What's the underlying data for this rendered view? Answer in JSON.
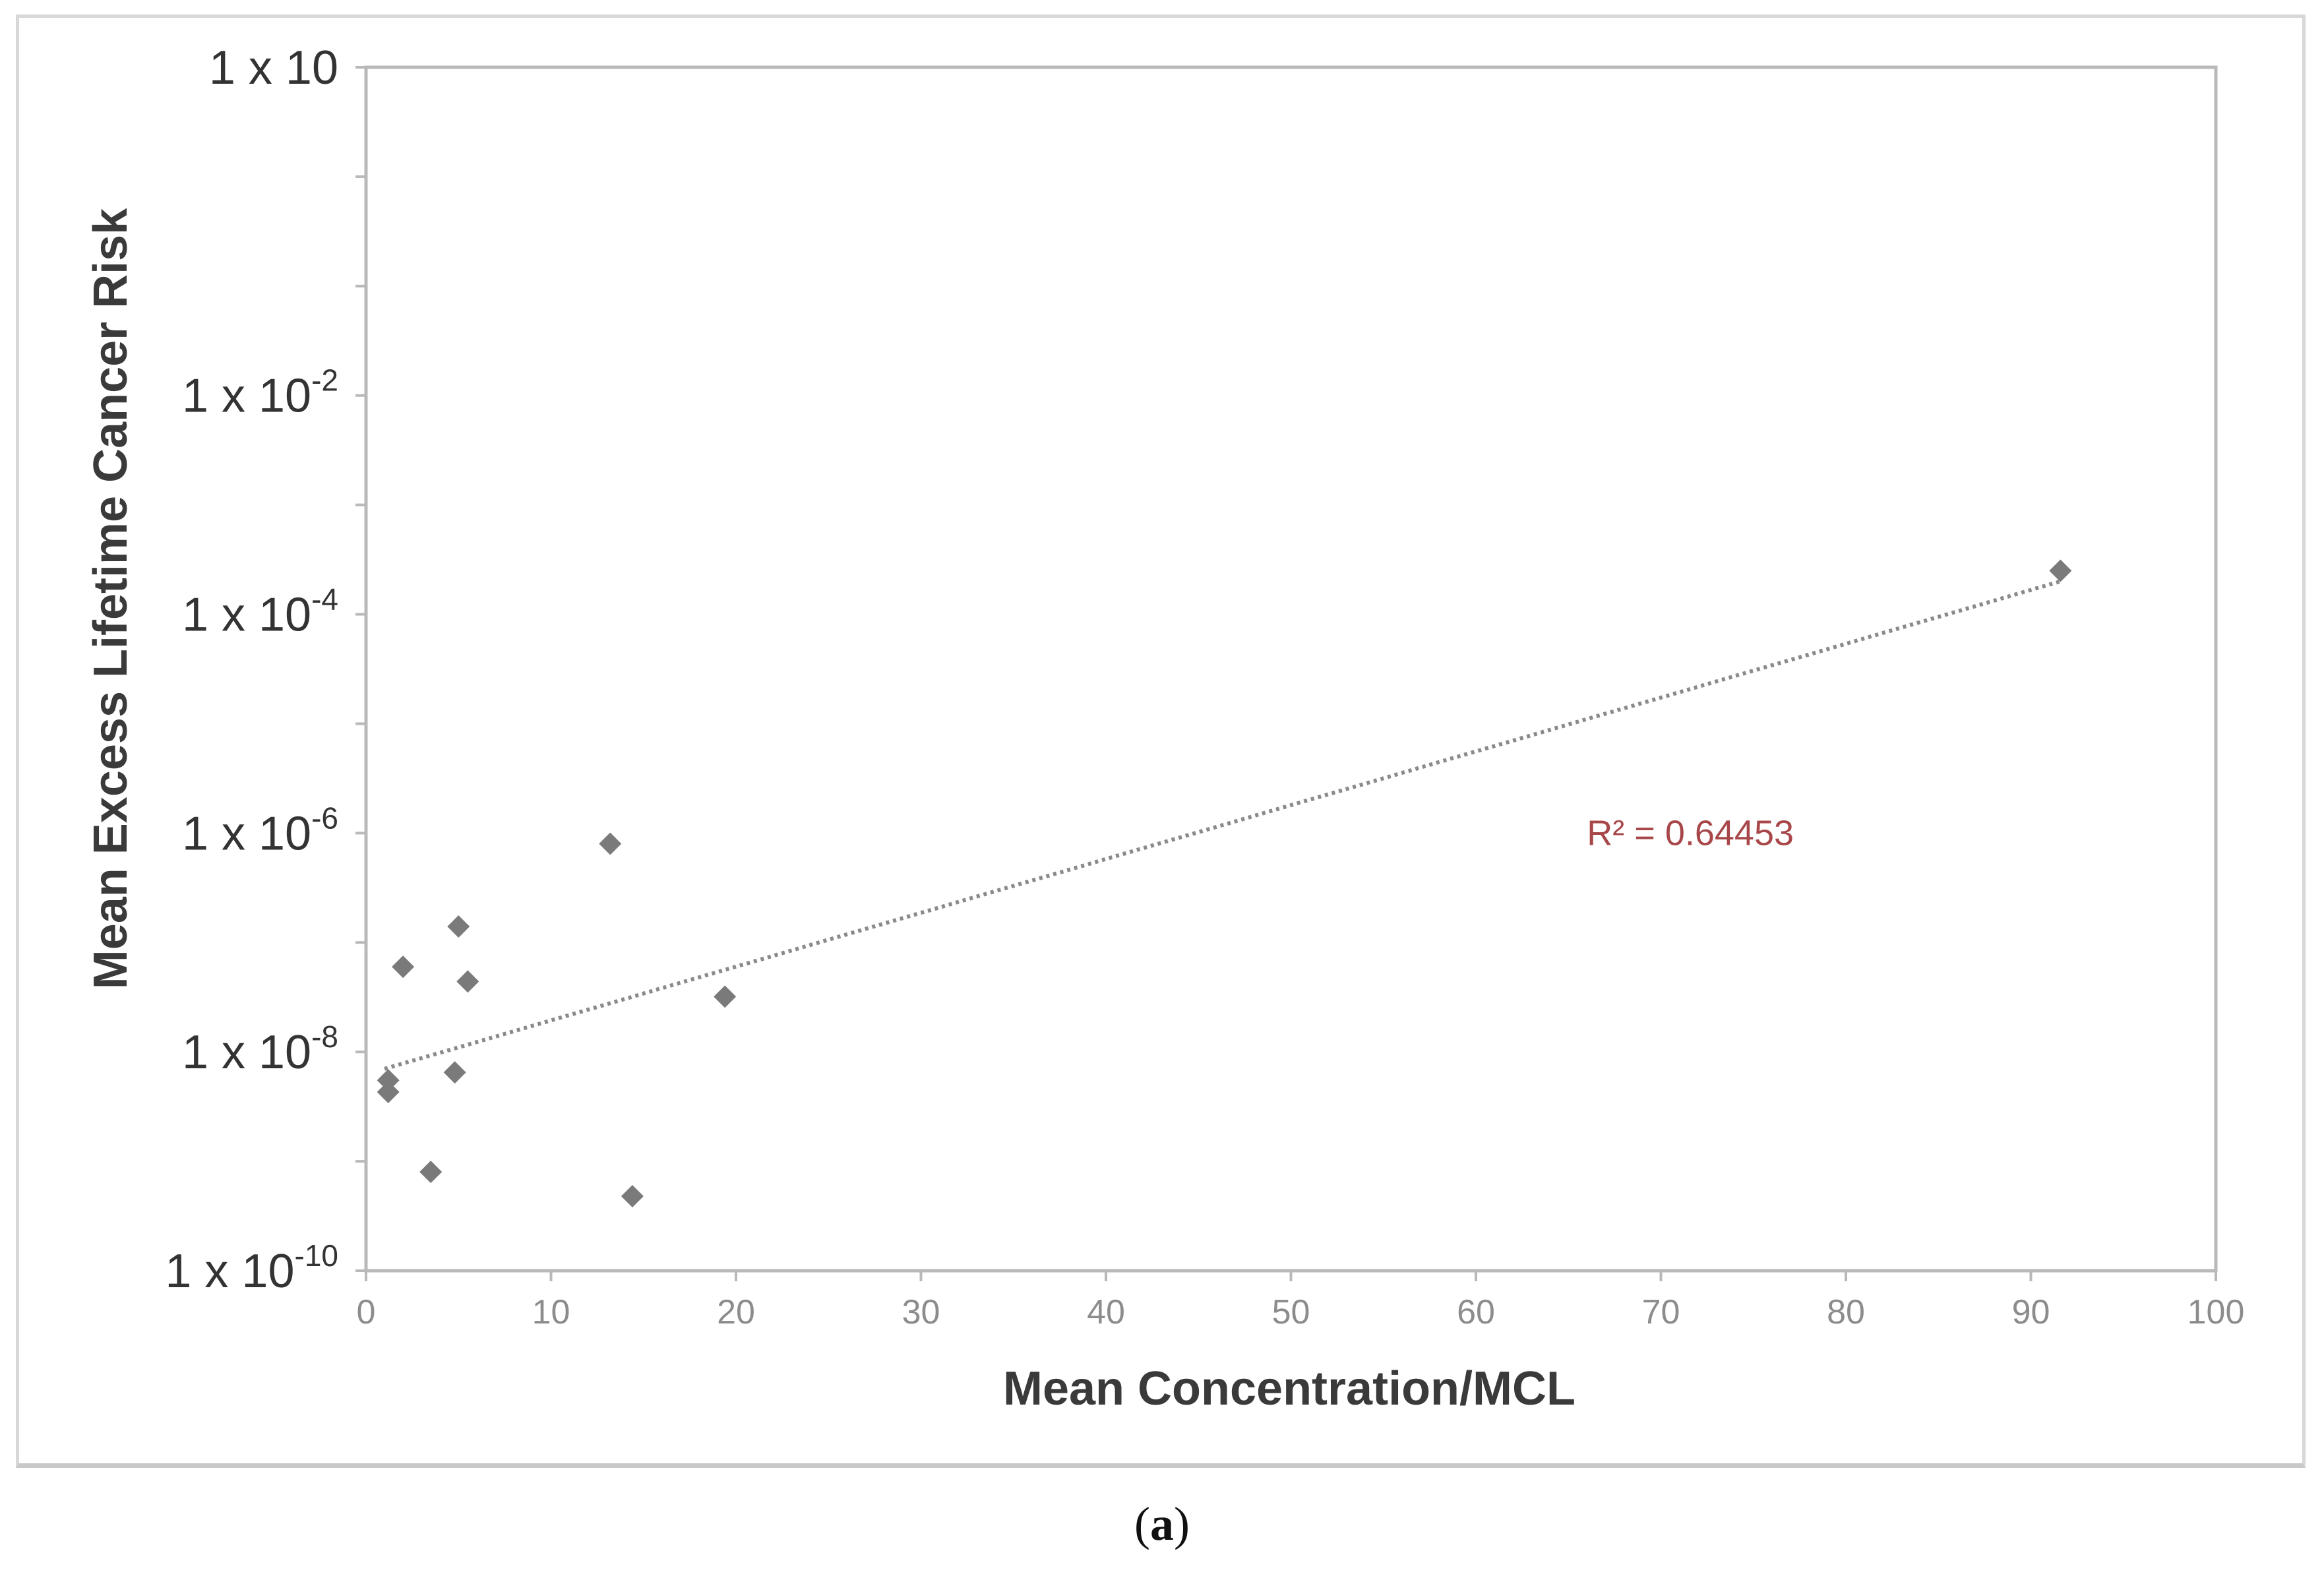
{
  "panel": {
    "open": "(",
    "letter": "a",
    "close": ")"
  },
  "colors": {
    "marker": "#7a7a7a",
    "trendline": "#8a8a8a",
    "annotation": "#a8474a",
    "axis": "#b9b9b9",
    "axis_label": "#3a3a3a",
    "tick_label_y": "#333333",
    "tick_label_x": "#8c8c8c"
  },
  "chart_data": {
    "type": "scatter",
    "xlabel": "Mean Concentration/MCL",
    "ylabel": "Mean Excess Lifetime Cancer Risk",
    "xlim": [
      0,
      100
    ],
    "ylim": [
      1e-10,
      10
    ],
    "yscale": "log",
    "grid": false,
    "x_ticks": [
      0,
      10,
      20,
      30,
      40,
      50,
      60,
      70,
      80,
      90,
      100
    ],
    "x_tick_labels": [
      "0",
      "10",
      "20",
      "30",
      "40",
      "50",
      "60",
      "70",
      "80",
      "90",
      "100"
    ],
    "y_ticks": [
      {
        "value": 10,
        "base": "1 x 10",
        "exp": ""
      },
      {
        "value": 0.01,
        "base": "1 x 10",
        "exp": "-2"
      },
      {
        "value": 0.0001,
        "base": "1 x 10",
        "exp": "-4"
      },
      {
        "value": 1e-06,
        "base": "1 x 10",
        "exp": "-6"
      },
      {
        "value": 1e-08,
        "base": "1 x 10",
        "exp": "-8"
      },
      {
        "value": 1e-10,
        "base": "1 x 10",
        "exp": "-10"
      }
    ],
    "points": [
      {
        "x": 91.6,
        "y": 0.00025
      },
      {
        "x": 13.2,
        "y": 8e-07
      },
      {
        "x": 5.0,
        "y": 1.4e-07
      },
      {
        "x": 2.0,
        "y": 6e-08
      },
      {
        "x": 5.5,
        "y": 4.4e-08
      },
      {
        "x": 19.4,
        "y": 3.2e-08
      },
      {
        "x": 4.8,
        "y": 6.5e-09
      },
      {
        "x": 1.2,
        "y": 5.5e-09
      },
      {
        "x": 1.2,
        "y": 4.3e-09
      },
      {
        "x": 3.5,
        "y": 8e-10
      },
      {
        "x": 14.4,
        "y": 4.8e-10
      }
    ],
    "trendline": {
      "type": "exponential",
      "from": {
        "x": 1,
        "y": 7e-09
      },
      "to": {
        "x": 91.6,
        "y": 0.0002
      },
      "r2_label": "R² = 0.64453",
      "label_at": {
        "x": 66,
        "y": 1e-06
      }
    }
  }
}
